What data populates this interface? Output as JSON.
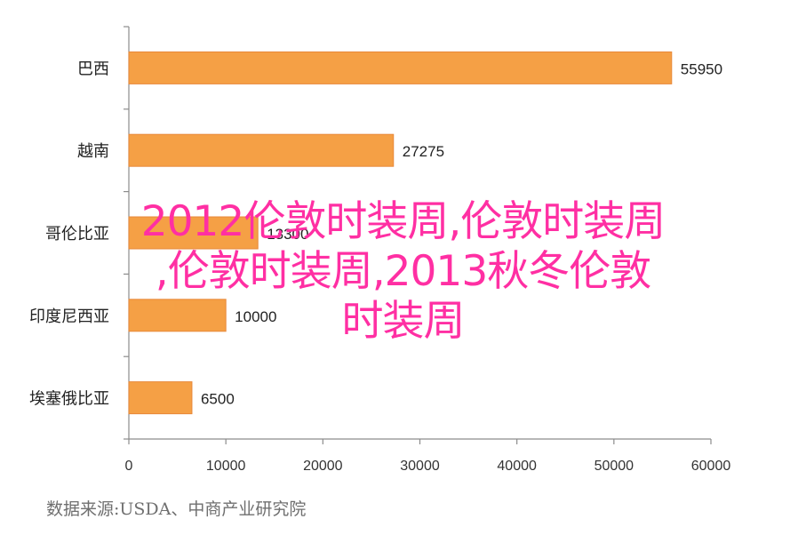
{
  "chart_data": {
    "type": "bar",
    "orientation": "horizontal",
    "categories": [
      "巴西",
      "越南",
      "哥伦比亚",
      "印度尼西亚",
      "埃塞俄比亚"
    ],
    "values": [
      55950,
      27275,
      13300,
      10000,
      6500
    ],
    "value_labels": [
      "55950",
      "27275",
      "13300",
      "10000",
      "6500"
    ],
    "xlim": [
      0,
      60000
    ],
    "xticks": [
      0,
      10000,
      20000,
      30000,
      40000,
      50000,
      60000
    ],
    "xtick_labels": [
      "0",
      "10000",
      "20000",
      "30000",
      "40000",
      "50000",
      "60000"
    ],
    "grid": false,
    "bar_color": "#f5a045",
    "bar_border": "#e8893a"
  },
  "source_note": "数据来源:USDA、中商产业研究院",
  "overlay": {
    "lines": [
      "2012伦敦时装周,伦敦时装周",
      ",伦敦时装周,2013秋冬伦敦",
      "时装周"
    ],
    "color": "#ff2fa3"
  }
}
